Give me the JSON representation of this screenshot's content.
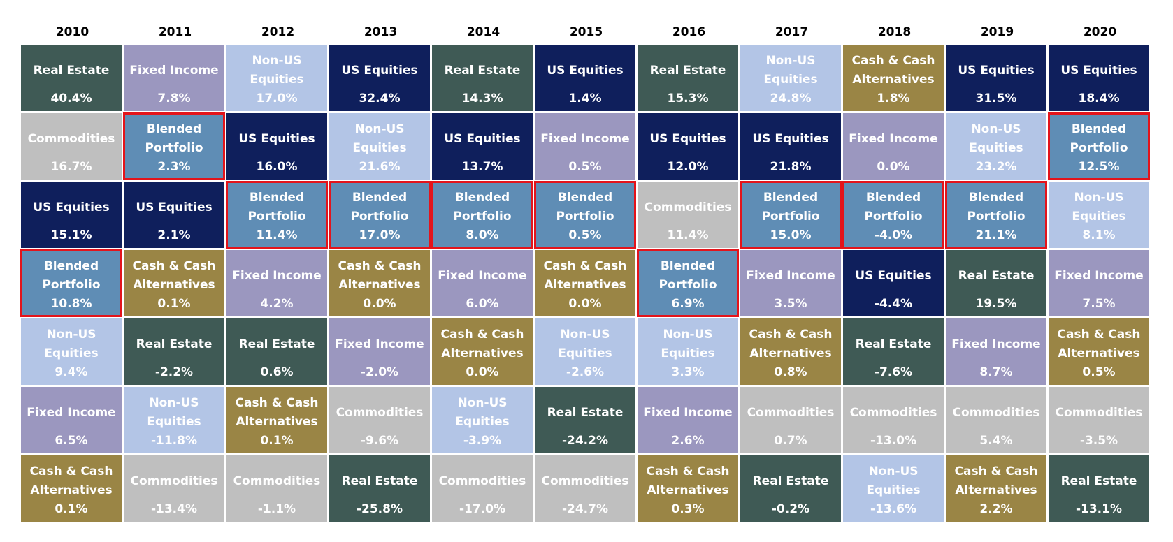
{
  "table": {
    "years": [
      "2010",
      "2011",
      "2012",
      "2013",
      "2014",
      "2015",
      "2016",
      "2017",
      "2018",
      "2019",
      "2020"
    ],
    "columns": [
      {
        "cells": [
          {
            "asset": "Real Estate",
            "return": "40.4%",
            "color": "#3f5a55"
          },
          {
            "asset": "Commodities",
            "return": "16.7%",
            "color": "#bfbfbf"
          },
          {
            "asset": "US Equities",
            "return": "15.1%",
            "color": "#0f1f5c"
          },
          {
            "asset": "Blended Portfolio",
            "return": "10.8%",
            "color": "#5f8db5",
            "highlight": true
          },
          {
            "asset": "Non-US Equities",
            "return": "9.4%",
            "color": "#b3c5e6"
          },
          {
            "asset": "Fixed Income",
            "return": "6.5%",
            "color": "#9b97bf"
          },
          {
            "asset": "Cash & Cash Alternatives",
            "return": "0.1%",
            "color": "#9a8545"
          }
        ]
      },
      {
        "cells": [
          {
            "asset": "Fixed Income",
            "return": "7.8%",
            "color": "#9b97bf"
          },
          {
            "asset": "Blended Portfolio",
            "return": "2.3%",
            "color": "#5f8db5",
            "highlight": true
          },
          {
            "asset": "US Equities",
            "return": "2.1%",
            "color": "#0f1f5c"
          },
          {
            "asset": "Cash & Cash Alternatives",
            "return": "0.1%",
            "color": "#9a8545"
          },
          {
            "asset": "Real Estate",
            "return": "-2.2%",
            "color": "#3f5a55"
          },
          {
            "asset": "Non-US Equities",
            "return": "-11.8%",
            "color": "#b3c5e6"
          },
          {
            "asset": "Commodities",
            "return": "-13.4%",
            "color": "#bfbfbf"
          }
        ]
      },
      {
        "cells": [
          {
            "asset": "Non-US Equities",
            "return": "17.0%",
            "color": "#b3c5e6"
          },
          {
            "asset": "US Equities",
            "return": "16.0%",
            "color": "#0f1f5c"
          },
          {
            "asset": "Blended Portfolio",
            "return": "11.4%",
            "color": "#5f8db5",
            "highlight": true
          },
          {
            "asset": "Fixed Income",
            "return": "4.2%",
            "color": "#9b97bf"
          },
          {
            "asset": "Real Estate",
            "return": "0.6%",
            "color": "#3f5a55"
          },
          {
            "asset": "Cash & Cash Alternatives",
            "return": "0.1%",
            "color": "#9a8545"
          },
          {
            "asset": "Commodities",
            "return": "-1.1%",
            "color": "#bfbfbf"
          }
        ]
      },
      {
        "cells": [
          {
            "asset": "US Equities",
            "return": "32.4%",
            "color": "#0f1f5c"
          },
          {
            "asset": "Non-US Equities",
            "return": "21.6%",
            "color": "#b3c5e6"
          },
          {
            "asset": "Blended Portfolio",
            "return": "17.0%",
            "color": "#5f8db5",
            "highlight": true
          },
          {
            "asset": "Cash & Cash Alternatives",
            "return": "0.0%",
            "color": "#9a8545"
          },
          {
            "asset": "Fixed Income",
            "return": "-2.0%",
            "color": "#9b97bf"
          },
          {
            "asset": "Commodities",
            "return": "-9.6%",
            "color": "#bfbfbf"
          },
          {
            "asset": "Real Estate",
            "return": "-25.8%",
            "color": "#3f5a55"
          }
        ]
      },
      {
        "cells": [
          {
            "asset": "Real Estate",
            "return": "14.3%",
            "color": "#3f5a55"
          },
          {
            "asset": "US Equities",
            "return": "13.7%",
            "color": "#0f1f5c"
          },
          {
            "asset": "Blended Portfolio",
            "return": "8.0%",
            "color": "#5f8db5",
            "highlight": true
          },
          {
            "asset": "Fixed Income",
            "return": "6.0%",
            "color": "#9b97bf"
          },
          {
            "asset": "Cash & Cash Alternatives",
            "return": "0.0%",
            "color": "#9a8545"
          },
          {
            "asset": "Non-US Equities",
            "return": "-3.9%",
            "color": "#b3c5e6"
          },
          {
            "asset": "Commodities",
            "return": "-17.0%",
            "color": "#bfbfbf"
          }
        ]
      },
      {
        "cells": [
          {
            "asset": "US Equities",
            "return": "1.4%",
            "color": "#0f1f5c"
          },
          {
            "asset": "Fixed Income",
            "return": "0.5%",
            "color": "#9b97bf"
          },
          {
            "asset": "Blended Portfolio",
            "return": "0.5%",
            "color": "#5f8db5",
            "highlight": true
          },
          {
            "asset": "Cash & Cash Alternatives",
            "return": "0.0%",
            "color": "#9a8545"
          },
          {
            "asset": "Non-US Equities",
            "return": "-2.6%",
            "color": "#b3c5e6"
          },
          {
            "asset": "Real Estate",
            "return": "-24.2%",
            "color": "#3f5a55"
          },
          {
            "asset": "Commodities",
            "return": "-24.7%",
            "color": "#bfbfbf"
          }
        ]
      },
      {
        "cells": [
          {
            "asset": "Real Estate",
            "return": "15.3%",
            "color": "#3f5a55"
          },
          {
            "asset": "US Equities",
            "return": "12.0%",
            "color": "#0f1f5c"
          },
          {
            "asset": "Commodities",
            "return": "11.4%",
            "color": "#bfbfbf"
          },
          {
            "asset": "Blended Portfolio",
            "return": "6.9%",
            "color": "#5f8db5",
            "highlight": true
          },
          {
            "asset": "Non-US Equities",
            "return": "3.3%",
            "color": "#b3c5e6"
          },
          {
            "asset": "Fixed Income",
            "return": "2.6%",
            "color": "#9b97bf"
          },
          {
            "asset": "Cash & Cash Alternatives",
            "return": "0.3%",
            "color": "#9a8545"
          }
        ]
      },
      {
        "cells": [
          {
            "asset": "Non-US Equities",
            "return": "24.8%",
            "color": "#b3c5e6"
          },
          {
            "asset": "US Equities",
            "return": "21.8%",
            "color": "#0f1f5c"
          },
          {
            "asset": "Blended Portfolio",
            "return": "15.0%",
            "color": "#5f8db5",
            "highlight": true
          },
          {
            "asset": "Fixed Income",
            "return": "3.5%",
            "color": "#9b97bf"
          },
          {
            "asset": "Cash & Cash Alternatives",
            "return": "0.8%",
            "color": "#9a8545"
          },
          {
            "asset": "Commodities",
            "return": "0.7%",
            "color": "#bfbfbf"
          },
          {
            "asset": "Real Estate",
            "return": "-0.2%",
            "color": "#3f5a55"
          }
        ]
      },
      {
        "cells": [
          {
            "asset": "Cash & Cash Alternatives",
            "return": "1.8%",
            "color": "#9a8545"
          },
          {
            "asset": "Fixed Income",
            "return": "0.0%",
            "color": "#9b97bf"
          },
          {
            "asset": "Blended Portfolio",
            "return": "-4.0%",
            "color": "#5f8db5",
            "highlight": true
          },
          {
            "asset": "US Equities",
            "return": "-4.4%",
            "color": "#0f1f5c"
          },
          {
            "asset": "Real Estate",
            "return": "-7.6%",
            "color": "#3f5a55"
          },
          {
            "asset": "Commodities",
            "return": "-13.0%",
            "color": "#bfbfbf"
          },
          {
            "asset": "Non-US Equities",
            "return": "-13.6%",
            "color": "#b3c5e6"
          }
        ]
      },
      {
        "cells": [
          {
            "asset": "US Equities",
            "return": "31.5%",
            "color": "#0f1f5c"
          },
          {
            "asset": "Non-US Equities",
            "return": "23.2%",
            "color": "#b3c5e6"
          },
          {
            "asset": "Blended Portfolio",
            "return": "21.1%",
            "color": "#5f8db5",
            "highlight": true
          },
          {
            "asset": "Real Estate",
            "return": "19.5%",
            "color": "#3f5a55"
          },
          {
            "asset": "Fixed Income",
            "return": "8.7%",
            "color": "#9b97bf"
          },
          {
            "asset": "Commodities",
            "return": "5.4%",
            "color": "#bfbfbf"
          },
          {
            "asset": "Cash & Cash Alternatives",
            "return": "2.2%",
            "color": "#9a8545"
          }
        ]
      },
      {
        "cells": [
          {
            "asset": "US Equities",
            "return": "18.4%",
            "color": "#0f1f5c"
          },
          {
            "asset": "Blended Portfolio",
            "return": "12.5%",
            "color": "#5f8db5",
            "highlight": true
          },
          {
            "asset": "Non-US Equities",
            "return": "8.1%",
            "color": "#b3c5e6"
          },
          {
            "asset": "Fixed Income",
            "return": "7.5%",
            "color": "#9b97bf"
          },
          {
            "asset": "Cash & Cash Alternatives",
            "return": "0.5%",
            "color": "#9a8545"
          },
          {
            "asset": "Commodities",
            "return": "-3.5%",
            "color": "#bfbfbf"
          },
          {
            "asset": "Real Estate",
            "return": "-13.1%",
            "color": "#3f5a55"
          }
        ]
      }
    ]
  }
}
